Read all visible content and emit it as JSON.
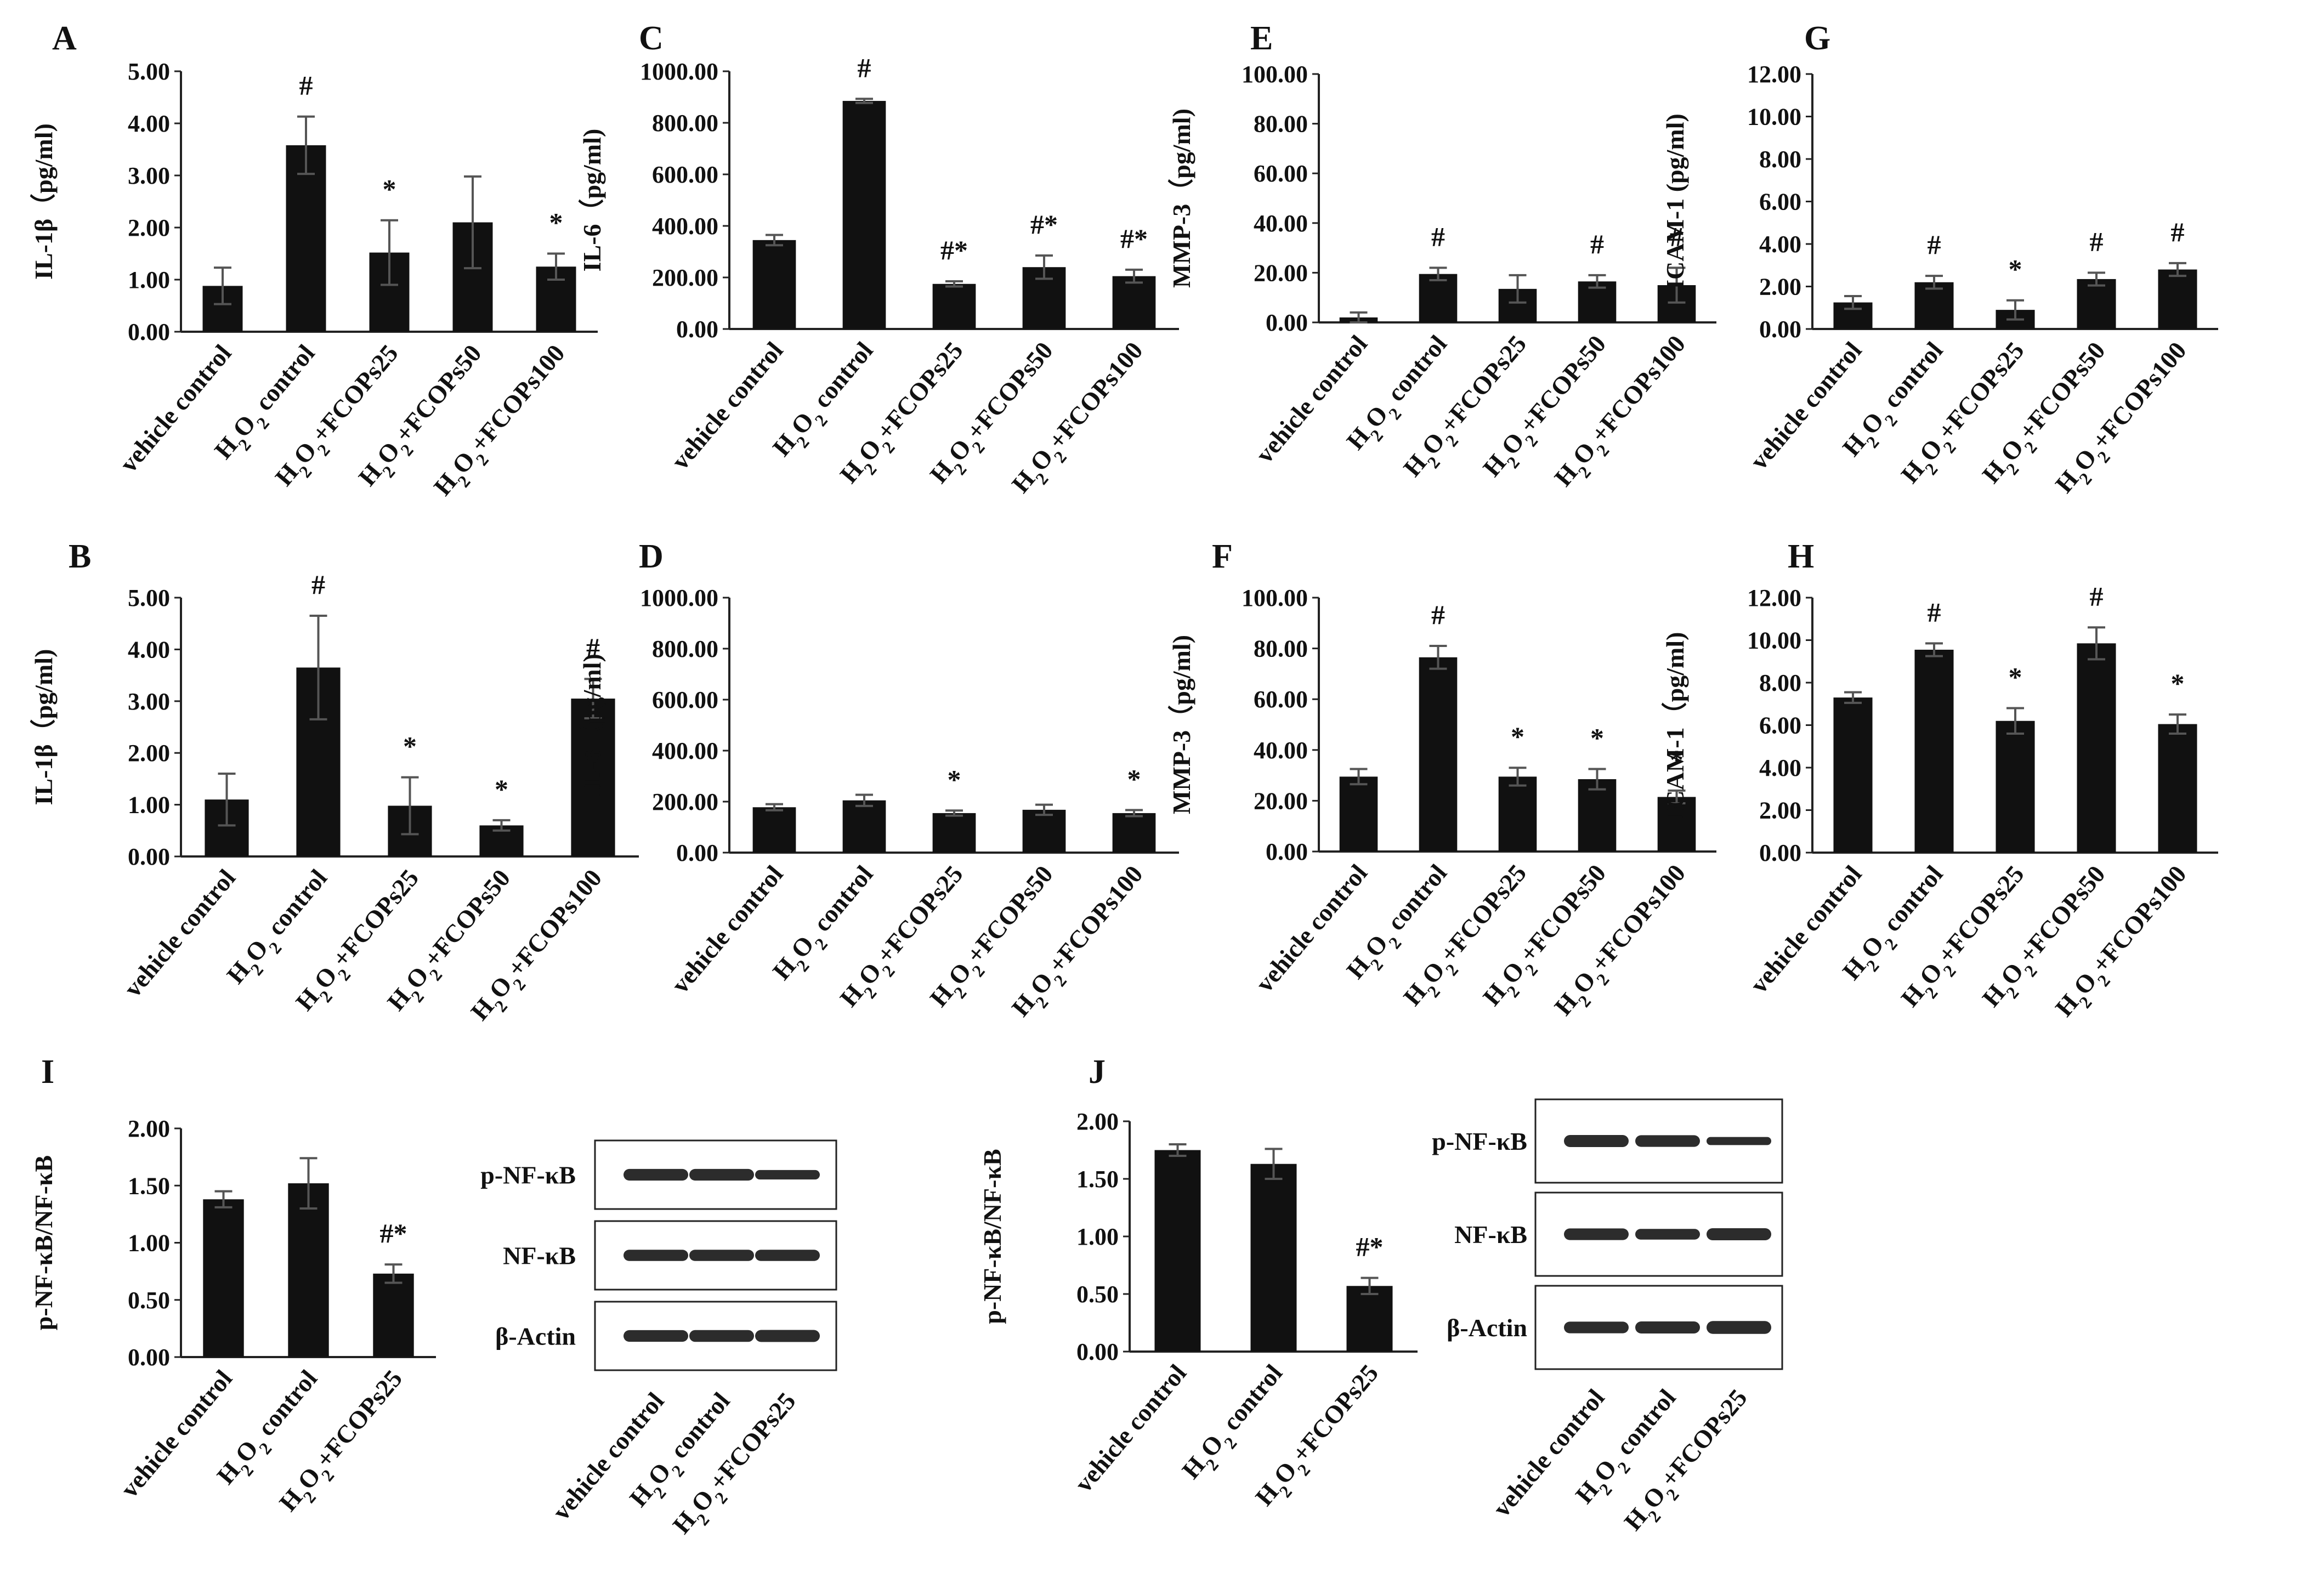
{
  "figure_title": "Multi-panel bar chart figure with western blots",
  "common_categories": [
    "vehicle control",
    "H2O2 control",
    "H2O2+FCOPs25",
    "H2O2+FCOPs50",
    "H2O2+FCOPs100"
  ],
  "chart_data": [
    {
      "id": "A",
      "type": "bar",
      "title": "A",
      "ylabel": "IL-1β（pg/ml)",
      "ylim": [
        0,
        5
      ],
      "yticks": [
        "0.00",
        "1.00",
        "2.00",
        "3.00",
        "4.00",
        "5.00"
      ],
      "categories": [
        "vehicle control",
        "H2O2 control",
        "H2O2+FCOPs25",
        "H2O2+FCOPs50",
        "H2O2+FCOPs100"
      ],
      "values": [
        0.88,
        3.58,
        1.52,
        2.1,
        1.25
      ],
      "errors": [
        0.35,
        0.55,
        0.62,
        0.88,
        0.25
      ],
      "annotations": [
        "",
        "#",
        "*",
        "",
        "*"
      ]
    },
    {
      "id": "C",
      "type": "bar",
      "title": "C",
      "ylabel": "IL-6（pg/ml)",
      "ylim": [
        0,
        1000
      ],
      "yticks": [
        "0.00",
        "200.00",
        "400.00",
        "600.00",
        "800.00",
        "1000.00"
      ],
      "categories": [
        "vehicle control",
        "H2O2 control",
        "H2O2+FCOPs25",
        "H2O2+FCOPs50",
        "H2O2+FCOPs100"
      ],
      "values": [
        345,
        885,
        175,
        240,
        205
      ],
      "errors": [
        20,
        8,
        10,
        45,
        25
      ],
      "annotations": [
        "",
        "#",
        "#*",
        "#*",
        "#*"
      ]
    },
    {
      "id": "E",
      "type": "bar",
      "title": "E",
      "ylabel": "MMP-3（pg/ml)",
      "ylim": [
        0,
        100
      ],
      "yticks": [
        "0.00",
        "20.00",
        "40.00",
        "60.00",
        "80.00",
        "100.00"
      ],
      "categories": [
        "vehicle control",
        "H2O2 control",
        "H2O2+FCOPs25",
        "H2O2+FCOPs50",
        "H2O2+FCOPs100"
      ],
      "values": [
        2,
        19.5,
        13.5,
        16.5,
        15
      ],
      "errors": [
        2,
        2.5,
        5.5,
        2.5,
        7
      ],
      "annotations": [
        "",
        "#",
        "",
        "#",
        "#"
      ]
    },
    {
      "id": "G",
      "type": "bar",
      "title": "G",
      "ylabel": "ICAM-1 (pg/ml)",
      "ylim": [
        0,
        12
      ],
      "yticks": [
        "0.00",
        "2.00",
        "4.00",
        "6.00",
        "8.00",
        "10.00",
        "12.00"
      ],
      "categories": [
        "vehicle control",
        "H2O2 control",
        "H2O2+FCOPs25",
        "H2O2+FCOPs50",
        "H2O2+FCOPs100"
      ],
      "values": [
        1.25,
        2.2,
        0.9,
        2.35,
        2.8
      ],
      "errors": [
        0.3,
        0.3,
        0.45,
        0.3,
        0.3
      ],
      "annotations": [
        "",
        "#",
        "*",
        "#",
        "#"
      ]
    },
    {
      "id": "B",
      "type": "bar",
      "title": "B",
      "ylabel": "IL-1β（pg/ml)",
      "ylim": [
        0,
        5
      ],
      "yticks": [
        "0.00",
        "1.00",
        "2.00",
        "3.00",
        "4.00",
        "5.00"
      ],
      "categories": [
        "vehicle control",
        "H2O2 control",
        "H2O2+FCOPs25",
        "H2O2+FCOPs50",
        "H2O2+FCOPs100"
      ],
      "values": [
        1.1,
        3.65,
        0.98,
        0.6,
        3.05
      ],
      "errors": [
        0.5,
        1.0,
        0.55,
        0.1,
        0.38
      ],
      "annotations": [
        "",
        "#",
        "*",
        "*",
        "#"
      ]
    },
    {
      "id": "D",
      "type": "bar",
      "title": "D",
      "ylabel": "IL-6（pg/ml)",
      "ylim": [
        0,
        1000
      ],
      "yticks": [
        "0.00",
        "200.00",
        "400.00",
        "600.00",
        "800.00",
        "1000.00"
      ],
      "categories": [
        "vehicle control",
        "H2O2 control",
        "H2O2+FCOPs25",
        "H2O2+FCOPs50",
        "H2O2+FCOPs100"
      ],
      "values": [
        178,
        205,
        155,
        168,
        155
      ],
      "errors": [
        12,
        22,
        10,
        20,
        12
      ],
      "annotations": [
        "",
        "",
        "*",
        "",
        "*"
      ]
    },
    {
      "id": "F",
      "type": "bar",
      "title": "F",
      "ylabel": "MMP-3（pg/ml)",
      "ylim": [
        0,
        100
      ],
      "yticks": [
        "0.00",
        "20.00",
        "40.00",
        "60.00",
        "80.00",
        "100.00"
      ],
      "categories": [
        "vehicle control",
        "H2O2 control",
        "H2O2+FCOPs25",
        "H2O2+FCOPs50",
        "H2O2+FCOPs100"
      ],
      "values": [
        29.5,
        76.5,
        29.5,
        28.5,
        21.5
      ],
      "errors": [
        3,
        4.5,
        3.5,
        4,
        2.5
      ],
      "annotations": [
        "",
        "#",
        "*",
        "*",
        "*"
      ]
    },
    {
      "id": "H",
      "type": "bar",
      "title": "H",
      "ylabel": "ICAM-1（pg/ml)",
      "ylim": [
        0,
        12
      ],
      "yticks": [
        "0.00",
        "2.00",
        "4.00",
        "6.00",
        "8.00",
        "10.00",
        "12.00"
      ],
      "categories": [
        "vehicle control",
        "H2O2 control",
        "H2O2+FCOPs25",
        "H2O2+FCOPs50",
        "H2O2+FCOPs100"
      ],
      "values": [
        7.3,
        9.55,
        6.2,
        9.85,
        6.05
      ],
      "errors": [
        0.25,
        0.3,
        0.6,
        0.75,
        0.45
      ],
      "annotations": [
        "",
        "#",
        "*",
        "#",
        "*"
      ]
    },
    {
      "id": "I",
      "type": "bar",
      "title": "I",
      "ylabel": "p-NF-κB/NF-κB",
      "ylim": [
        0,
        2
      ],
      "yticks": [
        "0.00",
        "0.50",
        "1.00",
        "1.50",
        "2.00"
      ],
      "categories": [
        "vehicle control",
        "H2O2 control",
        "H2O2+FCOPs25"
      ],
      "values": [
        1.38,
        1.52,
        0.73
      ],
      "errors": [
        0.07,
        0.22,
        0.08
      ],
      "annotations": [
        "",
        "",
        "#*"
      ]
    },
    {
      "id": "J",
      "type": "bar",
      "title": "J",
      "ylabel": "p-NF-κB/NF-κB",
      "ylim": [
        0,
        2
      ],
      "yticks": [
        "0.00",
        "0.50",
        "1.00",
        "1.50",
        "2.00"
      ],
      "categories": [
        "vehicle control",
        "H2O2 control",
        "H2O2+FCOPs25"
      ],
      "values": [
        1.75,
        1.63,
        0.57
      ],
      "errors": [
        0.05,
        0.13,
        0.07
      ],
      "annotations": [
        "",
        "",
        "#*"
      ]
    }
  ],
  "blots": [
    {
      "id": "blot-I",
      "rows": [
        "p-NF-κB",
        "NF-κB",
        "β-Actin"
      ],
      "lanes": [
        "vehicle control",
        "H2O2 control",
        "H2O2+FCOPs25"
      ]
    },
    {
      "id": "blot-J",
      "rows": [
        "p-NF-κB",
        "NF-κB",
        "β-Actin"
      ],
      "lanes": [
        "vehicle control",
        "H2O2 control",
        "H2O2+FCOPs25"
      ]
    }
  ]
}
